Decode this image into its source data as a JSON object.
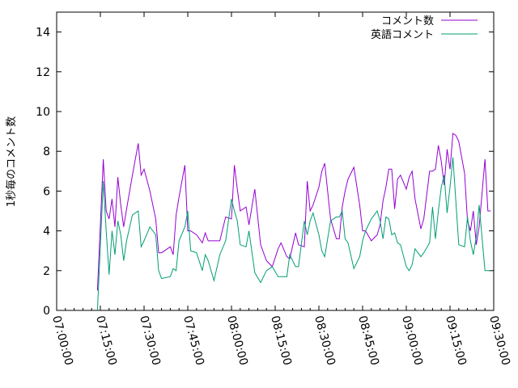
{
  "chart_data": {
    "type": "line",
    "title": "",
    "xlabel": "",
    "ylabel": "1秒毎のコメント数",
    "ylim": [
      0,
      15
    ],
    "yticks": [
      0,
      2,
      4,
      6,
      8,
      10,
      12,
      14
    ],
    "xlim": [
      "07:00:00",
      "09:30:00"
    ],
    "xticks": [
      "07:00:00",
      "07:15:00",
      "07:30:00",
      "07:45:00",
      "08:00:00",
      "08:15:00",
      "08:30:00",
      "08:45:00",
      "09:00:00",
      "09:15:00",
      "09:30:00"
    ],
    "grid": false,
    "legend_position": "top-right",
    "series": [
      {
        "name": "コメント数",
        "color": "#9400d3",
        "x": [
          "07:14:00",
          "07:16:00",
          "07:17:00",
          "07:18:00",
          "07:19:00",
          "07:20:00",
          "07:21:00",
          "07:22:00",
          "07:23:00",
          "07:24:00",
          "07:26:00",
          "07:28:00",
          "07:29:00",
          "07:30:00",
          "07:32:00",
          "07:34:00",
          "07:35:00",
          "07:36:00",
          "07:39:00",
          "07:40:00",
          "07:41:00",
          "07:42:00",
          "07:44:00",
          "07:45:00",
          "07:46:00",
          "07:48:00",
          "07:50:00",
          "07:51:00",
          "07:52:00",
          "07:54:00",
          "07:56:00",
          "07:58:00",
          "08:00:00",
          "08:01:00",
          "08:02:00",
          "08:03:00",
          "08:05:00",
          "08:06:00",
          "08:08:00",
          "08:10:00",
          "08:12:00",
          "08:14:00",
          "08:16:00",
          "08:17:00",
          "08:19:00",
          "08:20:00",
          "08:22:00",
          "08:23:00",
          "08:25:00",
          "08:26:00",
          "08:27:00",
          "08:28:00",
          "08:30:00",
          "08:31:00",
          "08:32:00",
          "08:34:00",
          "08:36:00",
          "08:37:00",
          "08:38:00",
          "08:39:00",
          "08:40:00",
          "08:42:00",
          "08:44:00",
          "08:45:00",
          "08:46:00",
          "08:48:00",
          "08:50:00",
          "08:51:00",
          "08:52:00",
          "08:53:00",
          "08:54:00",
          "08:55:00",
          "08:56:00",
          "08:57:00",
          "08:58:00",
          "09:00:00",
          "09:01:00",
          "09:02:00",
          "09:03:00",
          "09:05:00",
          "09:06:00",
          "09:08:00",
          "09:09:00",
          "09:10:00",
          "09:11:00",
          "09:12:00",
          "09:13:00",
          "09:14:00",
          "09:15:00",
          "09:16:00",
          "09:17:00",
          "09:18:00",
          "09:20:00",
          "09:21:00",
          "09:22:00",
          "09:23:00",
          "09:24:00",
          "09:25:00",
          "09:27:00",
          "09:28:00",
          "09:29:00"
        ],
        "values": [
          1.0,
          7.6,
          5.0,
          4.6,
          5.6,
          4.2,
          6.7,
          5.3,
          4.2,
          5.1,
          6.8,
          8.4,
          6.8,
          7.1,
          6.0,
          4.6,
          2.9,
          2.9,
          3.2,
          2.8,
          4.8,
          5.7,
          7.3,
          4.0,
          4.0,
          3.8,
          3.4,
          3.9,
          3.5,
          3.5,
          3.5,
          4.7,
          4.6,
          7.3,
          6.1,
          5.0,
          5.2,
          4.3,
          6.1,
          3.3,
          2.5,
          2.2,
          3.1,
          3.4,
          2.7,
          2.6,
          3.9,
          3.3,
          3.2,
          6.5,
          5.0,
          5.3,
          6.2,
          7.0,
          7.4,
          4.6,
          3.6,
          3.6,
          5.2,
          6.0,
          6.6,
          7.2,
          5.3,
          4.0,
          4.0,
          3.5,
          3.8,
          4.3,
          5.5,
          6.2,
          7.1,
          7.1,
          5.1,
          6.6,
          6.8,
          6.1,
          6.7,
          7.0,
          5.6,
          4.1,
          4.6,
          7.0,
          7.0,
          7.1,
          8.3,
          7.5,
          6.3,
          8.1,
          7.1,
          8.9,
          8.8,
          8.5,
          6.9,
          4.5,
          4.0,
          5.0,
          3.3,
          4.2,
          7.6,
          5.0,
          5.0
        ]
      },
      {
        "name": "英語コメント",
        "color": "#009e73",
        "x": [
          "07:14:00",
          "07:16:00",
          "07:17:00",
          "07:18:00",
          "07:19:00",
          "07:20:00",
          "07:21:00",
          "07:22:00",
          "07:23:00",
          "07:24:00",
          "07:26:00",
          "07:28:00",
          "07:29:00",
          "07:30:00",
          "07:32:00",
          "07:34:00",
          "07:35:00",
          "07:36:00",
          "07:39:00",
          "07:40:00",
          "07:41:00",
          "07:42:00",
          "07:44:00",
          "07:45:00",
          "07:46:00",
          "07:48:00",
          "07:50:00",
          "07:51:00",
          "07:52:00",
          "07:54:00",
          "07:56:00",
          "07:58:00",
          "08:00:00",
          "08:01:00",
          "08:02:00",
          "08:03:00",
          "08:05:00",
          "08:06:00",
          "08:08:00",
          "08:10:00",
          "08:12:00",
          "08:14:00",
          "08:16:00",
          "08:17:00",
          "08:19:00",
          "08:20:00",
          "08:22:00",
          "08:23:00",
          "08:25:00",
          "08:26:00",
          "08:27:00",
          "08:28:00",
          "08:30:00",
          "08:31:00",
          "08:32:00",
          "08:34:00",
          "08:36:00",
          "08:37:00",
          "08:38:00",
          "08:39:00",
          "08:40:00",
          "08:42:00",
          "08:44:00",
          "08:45:00",
          "08:46:00",
          "08:48:00",
          "08:50:00",
          "08:51:00",
          "08:52:00",
          "08:53:00",
          "08:54:00",
          "08:55:00",
          "08:56:00",
          "08:57:00",
          "08:58:00",
          "09:00:00",
          "09:01:00",
          "09:02:00",
          "09:03:00",
          "09:05:00",
          "09:06:00",
          "09:08:00",
          "09:09:00",
          "09:10:00",
          "09:11:00",
          "09:12:00",
          "09:13:00",
          "09:14:00",
          "09:15:00",
          "09:16:00",
          "09:17:00",
          "09:18:00",
          "09:20:00",
          "09:21:00",
          "09:22:00",
          "09:23:00",
          "09:24:00",
          "09:25:00",
          "09:27:00",
          "09:28:00",
          "09:29:00"
        ],
        "values": [
          0.0,
          6.5,
          4.0,
          1.8,
          4.0,
          2.8,
          4.5,
          3.8,
          2.5,
          3.5,
          4.8,
          5.0,
          3.2,
          3.5,
          4.2,
          3.8,
          2.0,
          1.6,
          1.7,
          2.1,
          2.0,
          3.5,
          4.2,
          5.0,
          3.0,
          2.9,
          2.0,
          2.8,
          2.5,
          1.5,
          2.8,
          3.5,
          5.6,
          5.0,
          4.5,
          3.3,
          3.2,
          4.0,
          1.9,
          1.4,
          2.0,
          2.2,
          1.7,
          1.7,
          1.7,
          2.8,
          2.2,
          2.2,
          4.5,
          3.8,
          4.5,
          4.9,
          3.8,
          3.0,
          2.7,
          4.5,
          4.7,
          4.7,
          5.0,
          3.6,
          3.4,
          2.1,
          2.7,
          3.5,
          4.0,
          4.6,
          5.0,
          4.5,
          3.6,
          4.7,
          4.6,
          3.8,
          3.9,
          3.4,
          3.3,
          2.2,
          2.0,
          2.3,
          3.1,
          2.7,
          2.9,
          3.4,
          5.2,
          3.6,
          5.0,
          6.2,
          6.8,
          4.9,
          6.2,
          7.7,
          5.5,
          3.3,
          3.2,
          4.7,
          3.5,
          2.8,
          3.7,
          5.3,
          2.0,
          2.0,
          2.0
        ]
      }
    ]
  }
}
